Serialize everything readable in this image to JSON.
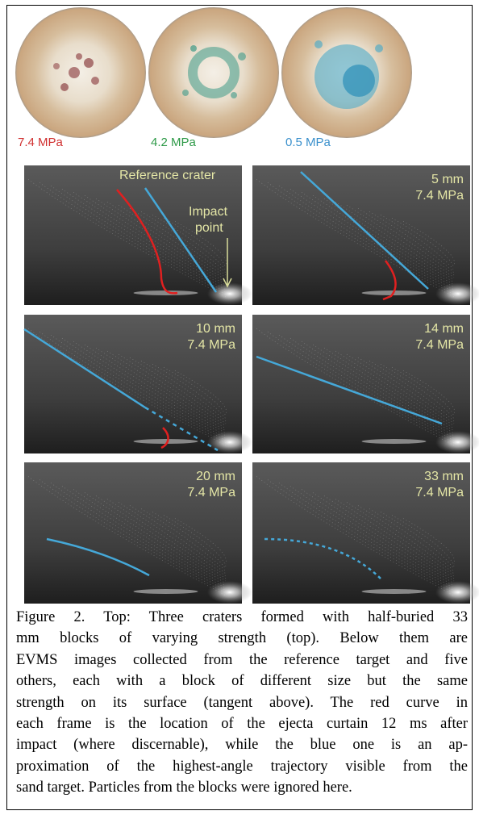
{
  "craters": [
    {
      "label": "7.4 MPa"
    },
    {
      "label": "4.2 MPa"
    },
    {
      "label": "0.5 MPa"
    }
  ],
  "panels": [
    {
      "labels": [
        "Reference crater",
        "Impact",
        "point"
      ]
    },
    {
      "size": "5 mm",
      "strength": "7.4 MPa"
    },
    {
      "size": "10 mm",
      "strength": "7.4 MPa"
    },
    {
      "size": "14 mm",
      "strength": "7.4 MPa"
    },
    {
      "size": "20 mm",
      "strength": "7.4 MPa"
    },
    {
      "size": "33 mm",
      "strength": "7.4 MPa"
    }
  ],
  "caption": {
    "lines": [
      "Figure 2. Top: Three craters formed with half-buried 33",
      "mm blocks of varying strength (top). Below them are",
      "EVMS images collected from the reference target and five",
      "others, each with a block of different size but the same",
      "strength on its surface (tangent above). The red curve in",
      "each frame is the location of the ejecta curtain 12 ms after",
      "impact (where discernable), while the blue one is an ap-",
      "proximation of the highest-angle trajectory visible from the",
      "sand target. Particles from the blocks were ignored here."
    ]
  }
}
